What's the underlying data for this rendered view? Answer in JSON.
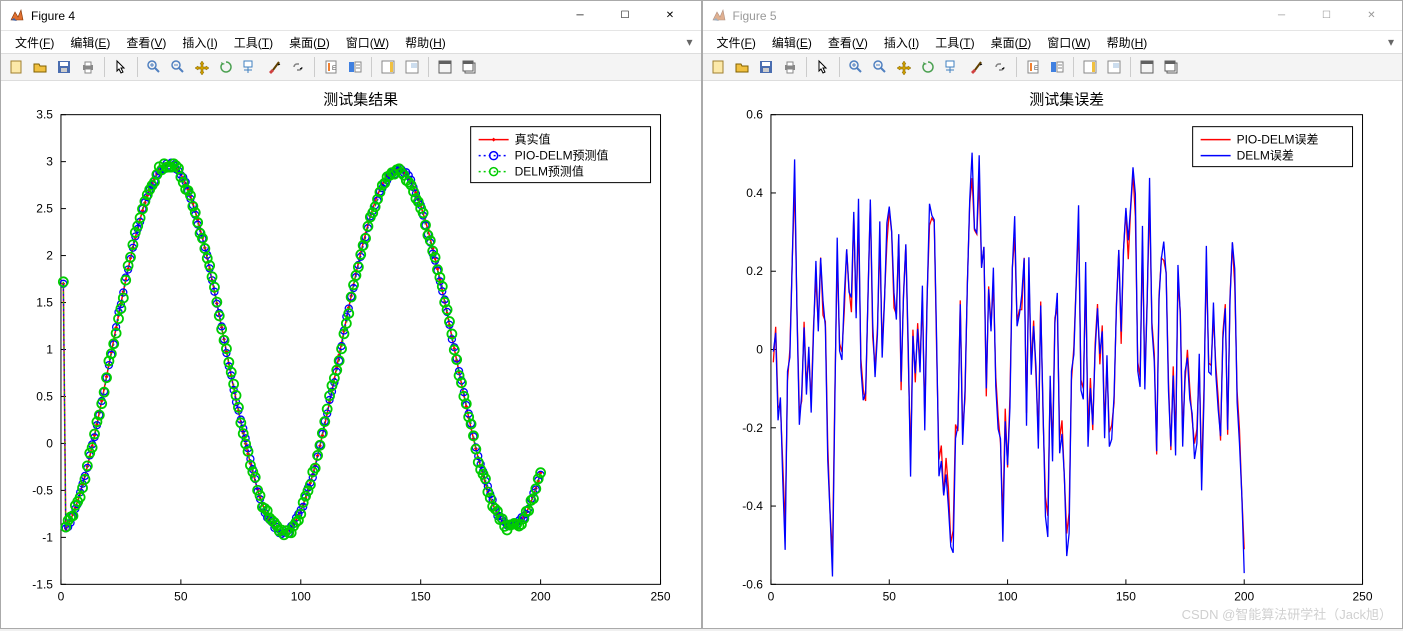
{
  "windows": [
    {
      "id": "fig4",
      "title": "Figure 4",
      "active": true
    },
    {
      "id": "fig5",
      "title": "Figure 5",
      "active": false
    }
  ],
  "menubar": [
    "文件(F)",
    "编辑(E)",
    "查看(V)",
    "插入(I)",
    "工具(T)",
    "桌面(D)",
    "窗口(W)",
    "帮助(H)"
  ],
  "toolbar_icons": [
    "new",
    "open",
    "save",
    "print",
    "|",
    "pointer",
    "|",
    "zoom-in",
    "zoom-out",
    "pan",
    "rotate",
    "datacursor",
    "brush",
    "link",
    "|",
    "colorbar",
    "legend",
    "|",
    "insert-colorbar",
    "insert-legend",
    "|",
    "dock",
    "undock"
  ],
  "watermark": "CSDN @智能算法研学社（Jack旭）",
  "chart1": {
    "title": "测试集结果",
    "xlim": [
      0,
      250
    ],
    "xticks": [
      0,
      50,
      100,
      150,
      200,
      250
    ],
    "ylim": [
      -1.5,
      3.5
    ],
    "yticks": [
      -1.5,
      -1,
      -0.5,
      0,
      0.5,
      1,
      1.5,
      2,
      2.5,
      3,
      3.5
    ],
    "legend": [
      {
        "label": "真实值",
        "color": "#ff0000",
        "marker": "star",
        "line": "solid"
      },
      {
        "label": "PIO-DELM预测值",
        "color": "#0000ff",
        "marker": "circle",
        "line": "dotted"
      },
      {
        "label": "DELM预测值",
        "color": "#00cc00",
        "marker": "circle",
        "line": "dotted"
      }
    ],
    "series_color_true": "#ff0000",
    "series_color_pio": "#0000ff",
    "series_color_delm": "#00cc00",
    "marker_outline": "#006400"
  },
  "chart2": {
    "title": "测试集误差",
    "xlim": [
      0,
      250
    ],
    "xticks": [
      0,
      50,
      100,
      150,
      200,
      250
    ],
    "ylim": [
      -0.6,
      0.6
    ],
    "yticks": [
      -0.6,
      -0.4,
      -0.2,
      0,
      0.2,
      0.4,
      0.6
    ],
    "legend": [
      {
        "label": "PIO-DELM误差",
        "color": "#ff0000",
        "line": "solid"
      },
      {
        "label": "DELM误差",
        "color": "#0000ff",
        "line": "solid"
      }
    ],
    "series_color_pio": "#ff0000",
    "series_color_delm": "#0000ff"
  },
  "icon_colors": {
    "new": "#fce9a9",
    "open": "#f0c040",
    "save": "#4a6db0",
    "print": "#888888",
    "pointer": "#000000",
    "zoom": "#5080c0",
    "pan": "#d0a000",
    "rotate": "#4aa050",
    "datacursor": "#4080c0",
    "brush": "#d04040",
    "link": "#808080",
    "colorbar": "#f08030",
    "legend": "#4080e0",
    "dock": "#606060"
  }
}
